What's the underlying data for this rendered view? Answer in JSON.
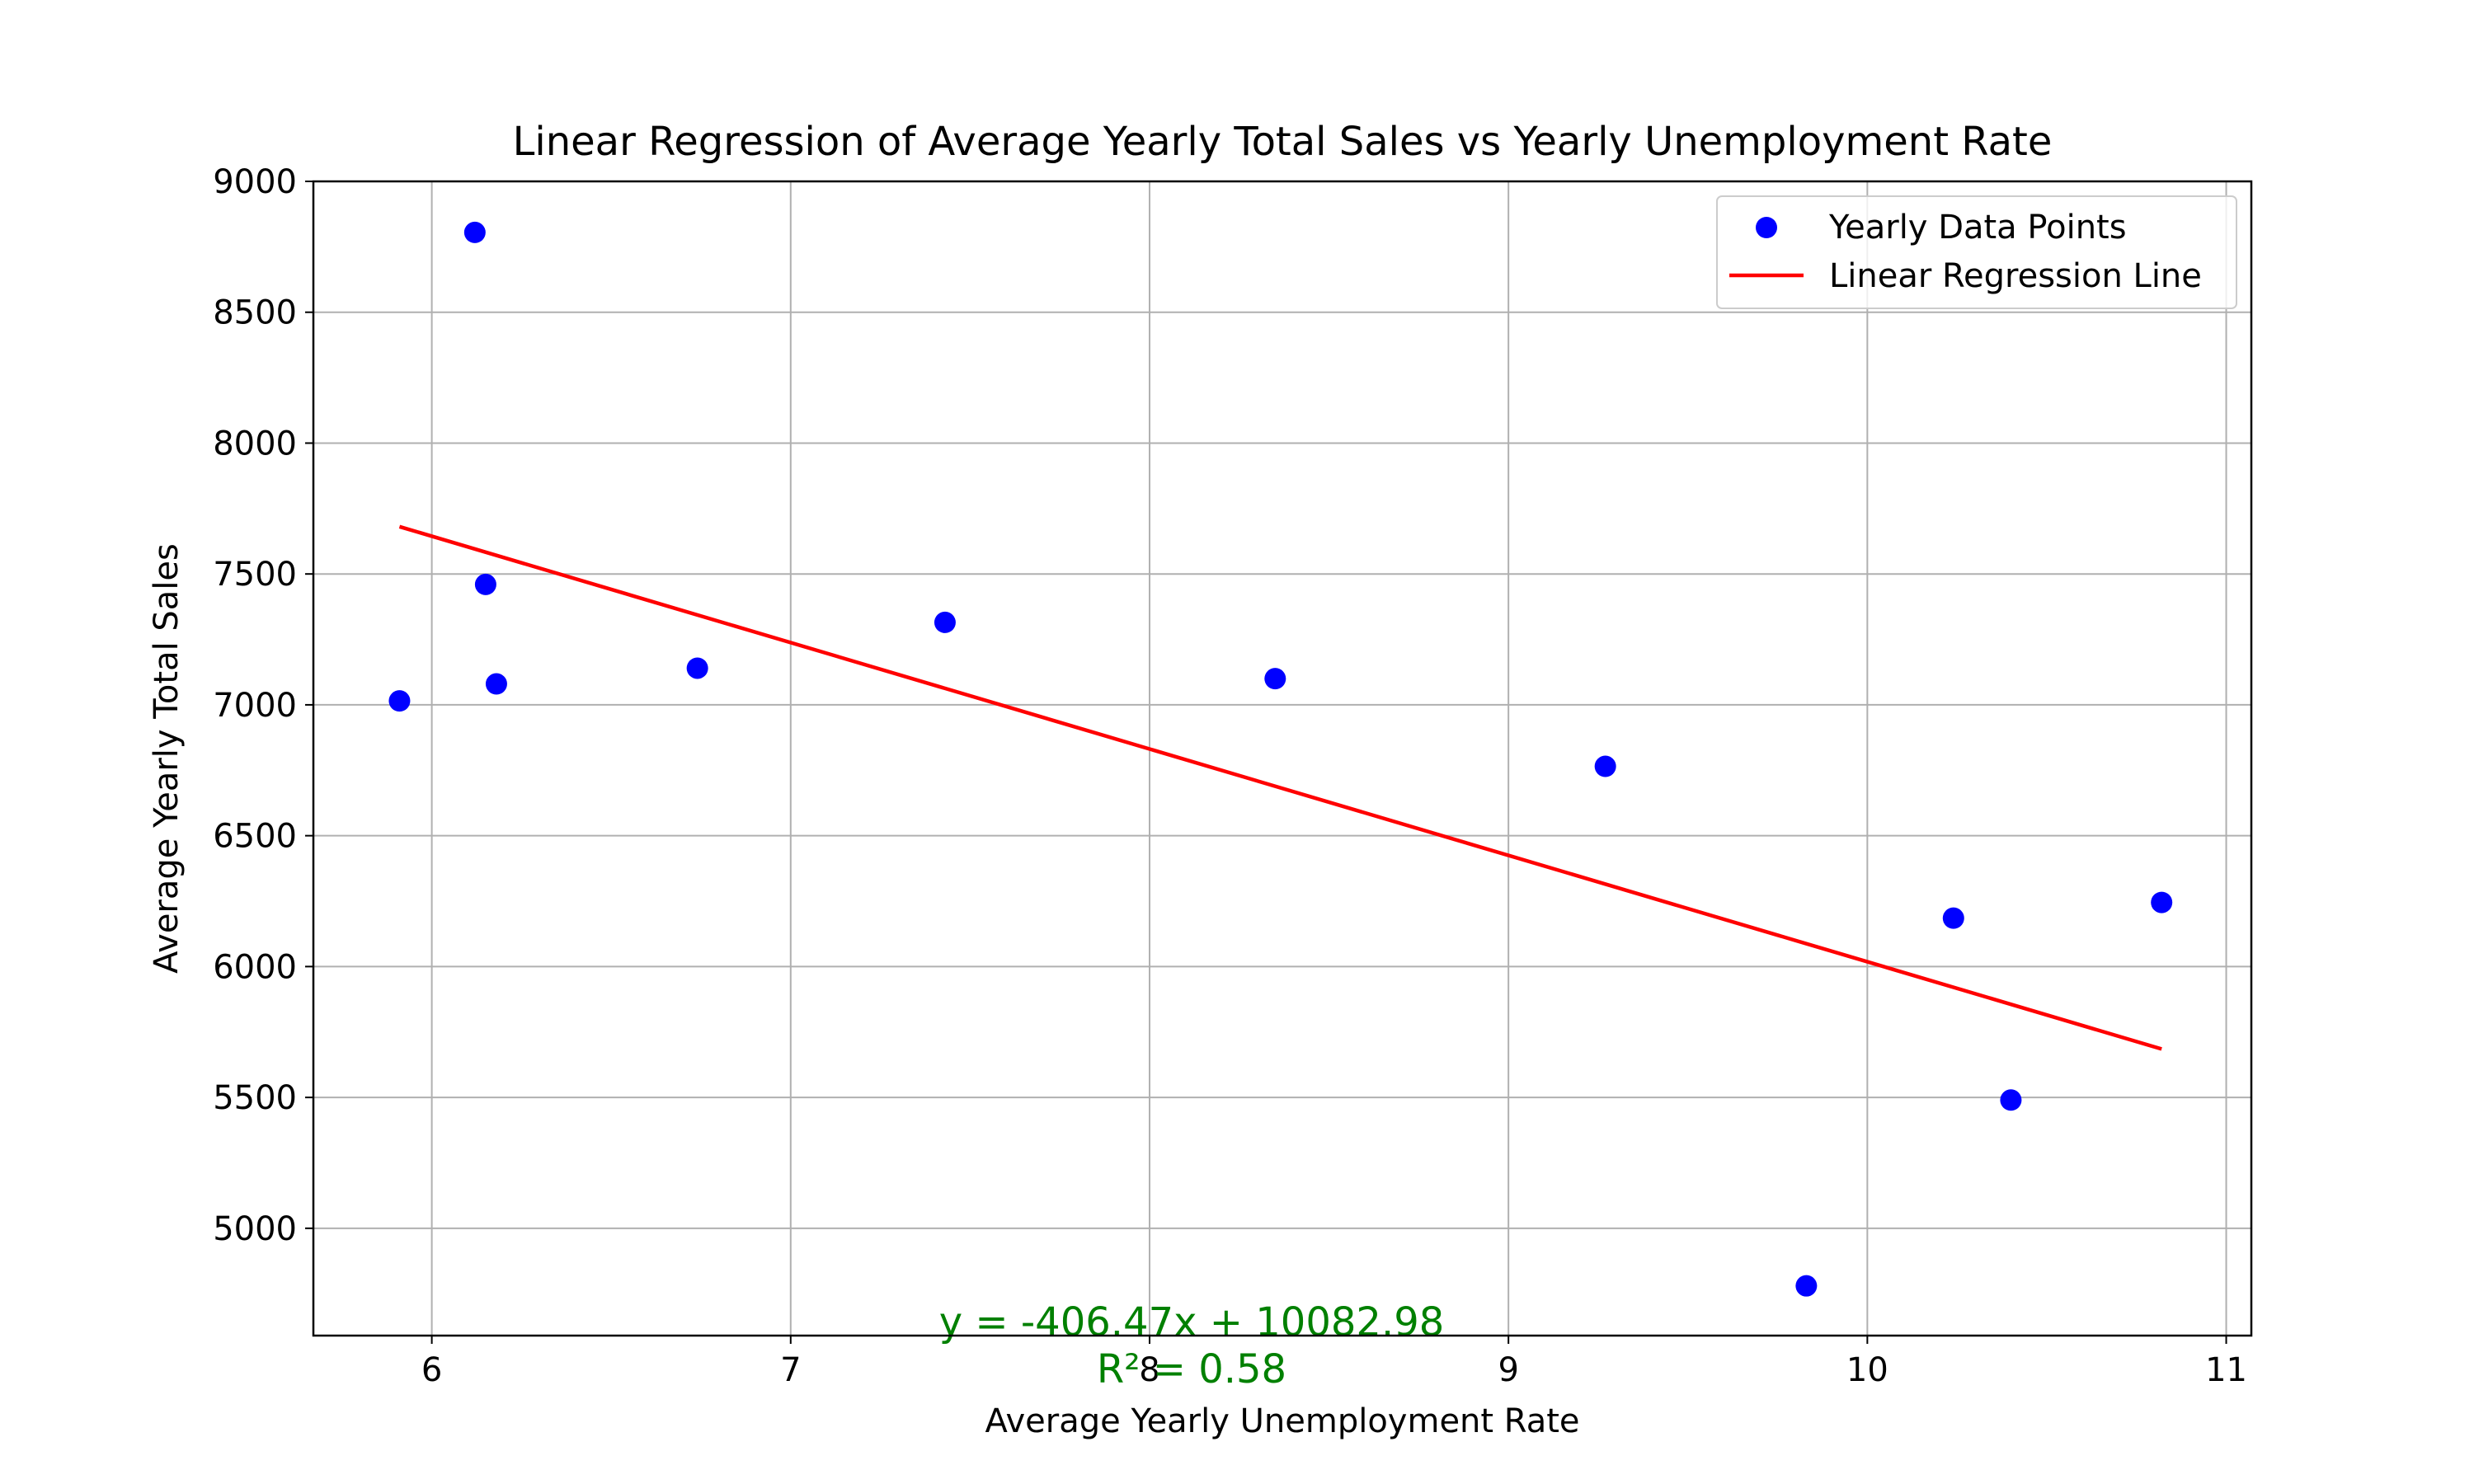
{
  "chart_data": {
    "type": "scatter",
    "title": "Linear Regression of Average Yearly Total Sales vs Yearly Unemployment Rate",
    "xlabel": "Average Yearly Unemployment Rate",
    "ylabel": "Average Yearly Total Sales",
    "xlim": [
      5.67,
      11.07
    ],
    "ylim": [
      4590,
      9000
    ],
    "x_ticks": [
      6,
      7,
      8,
      9,
      10,
      11
    ],
    "y_ticks": [
      5000,
      5500,
      6000,
      6500,
      7000,
      7500,
      8000,
      8500,
      9000
    ],
    "grid": true,
    "legend_position": "top-right",
    "series": [
      {
        "name": "Yearly Data Points",
        "kind": "scatter",
        "color": "#0000ff",
        "points": [
          [
            5.91,
            7015
          ],
          [
            6.12,
            8805
          ],
          [
            6.15,
            7460
          ],
          [
            6.18,
            7080
          ],
          [
            6.74,
            7140
          ],
          [
            7.43,
            7315
          ],
          [
            8.35,
            7100
          ],
          [
            9.27,
            6765
          ],
          [
            9.83,
            4780
          ],
          [
            10.24,
            6185
          ],
          [
            10.4,
            5490
          ],
          [
            10.82,
            6245
          ]
        ]
      },
      {
        "name": "Linear Regression Line",
        "kind": "line",
        "color": "#ff0000",
        "points": [
          [
            5.91,
            7680.8
          ],
          [
            10.82,
            5685.0
          ]
        ]
      }
    ],
    "annotations": [
      {
        "text": "y = -406.47x + 10082.98",
        "color": "#008000"
      },
      {
        "text": "R² = 0.58",
        "color": "#008000"
      }
    ]
  }
}
